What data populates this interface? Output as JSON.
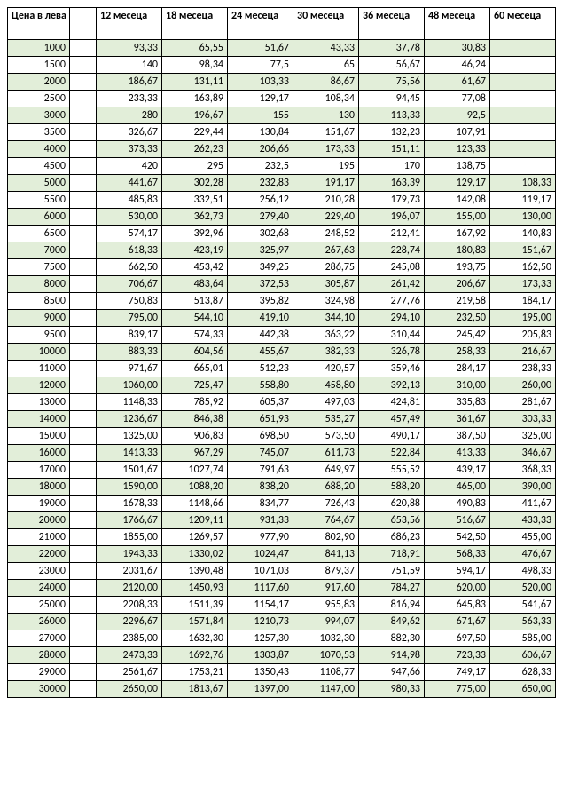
{
  "table": {
    "headers": {
      "price": "Цена в лева",
      "spacer": "",
      "months": [
        "12 месеца",
        "18 месеца",
        "24 месеца",
        "30 месеца",
        "36 месеца",
        "48 месеца",
        "60 месеца"
      ]
    },
    "rows": [
      {
        "price": "1000",
        "values": [
          "93,33",
          "65,55",
          "51,67",
          "43,33",
          "37,78",
          "30,83",
          ""
        ]
      },
      {
        "price": "1500",
        "values": [
          "140",
          "98,34",
          "77,5",
          "65",
          "56,67",
          "46,24",
          ""
        ]
      },
      {
        "price": "2000",
        "values": [
          "186,67",
          "131,11",
          "103,33",
          "86,67",
          "75,56",
          "61,67",
          ""
        ]
      },
      {
        "price": "2500",
        "values": [
          "233,33",
          "163,89",
          "129,17",
          "108,34",
          "94,45",
          "77,08",
          ""
        ]
      },
      {
        "price": "3000",
        "values": [
          "280",
          "196,67",
          "155",
          "130",
          "113,33",
          "92,5",
          ""
        ]
      },
      {
        "price": "3500",
        "values": [
          "326,67",
          "229,44",
          "130,84",
          "151,67",
          "132,23",
          "107,91",
          ""
        ]
      },
      {
        "price": "4000",
        "values": [
          "373,33",
          "262,23",
          "206,66",
          "173,33",
          "151,11",
          "123,33",
          ""
        ]
      },
      {
        "price": "4500",
        "values": [
          "420",
          "295",
          "232,5",
          "195",
          "170",
          "138,75",
          ""
        ]
      },
      {
        "price": "5000",
        "values": [
          "441,67",
          "302,28",
          "232,83",
          "191,17",
          "163,39",
          "129,17",
          "108,33"
        ]
      },
      {
        "price": "5500",
        "values": [
          "485,83",
          "332,51",
          "256,12",
          "210,28",
          "179,73",
          "142,08",
          "119,17"
        ]
      },
      {
        "price": "6000",
        "values": [
          "530,00",
          "362,73",
          "279,40",
          "229,40",
          "196,07",
          "155,00",
          "130,00"
        ]
      },
      {
        "price": "6500",
        "values": [
          "574,17",
          "392,96",
          "302,68",
          "248,52",
          "212,41",
          "167,92",
          "140,83"
        ]
      },
      {
        "price": "7000",
        "values": [
          "618,33",
          "423,19",
          "325,97",
          "267,63",
          "228,74",
          "180,83",
          "151,67"
        ]
      },
      {
        "price": "7500",
        "values": [
          "662,50",
          "453,42",
          "349,25",
          "286,75",
          "245,08",
          "193,75",
          "162,50"
        ]
      },
      {
        "price": "8000",
        "values": [
          "706,67",
          "483,64",
          "372,53",
          "305,87",
          "261,42",
          "206,67",
          "173,33"
        ]
      },
      {
        "price": "8500",
        "values": [
          "750,83",
          "513,87",
          "395,82",
          "324,98",
          "277,76",
          "219,58",
          "184,17"
        ]
      },
      {
        "price": "9000",
        "values": [
          "795,00",
          "544,10",
          "419,10",
          "344,10",
          "294,10",
          "232,50",
          "195,00"
        ]
      },
      {
        "price": "9500",
        "values": [
          "839,17",
          "574,33",
          "442,38",
          "363,22",
          "310,44",
          "245,42",
          "205,83"
        ]
      },
      {
        "price": "10000",
        "values": [
          "883,33",
          "604,56",
          "455,67",
          "382,33",
          "326,78",
          "258,33",
          "216,67"
        ]
      },
      {
        "price": "11000",
        "values": [
          "971,67",
          "665,01",
          "512,23",
          "420,57",
          "359,46",
          "284,17",
          "238,33"
        ]
      },
      {
        "price": "12000",
        "values": [
          "1060,00",
          "725,47",
          "558,80",
          "458,80",
          "392,13",
          "310,00",
          "260,00"
        ]
      },
      {
        "price": "13000",
        "values": [
          "1148,33",
          "785,92",
          "605,37",
          "497,03",
          "424,81",
          "335,83",
          "281,67"
        ]
      },
      {
        "price": "14000",
        "values": [
          "1236,67",
          "846,38",
          "651,93",
          "535,27",
          "457,49",
          "361,67",
          "303,33"
        ]
      },
      {
        "price": "15000",
        "values": [
          "1325,00",
          "906,83",
          "698,50",
          "573,50",
          "490,17",
          "387,50",
          "325,00"
        ]
      },
      {
        "price": "16000",
        "values": [
          "1413,33",
          "967,29",
          "745,07",
          "611,73",
          "522,84",
          "413,33",
          "346,67"
        ]
      },
      {
        "price": "17000",
        "values": [
          "1501,67",
          "1027,74",
          "791,63",
          "649,97",
          "555,52",
          "439,17",
          "368,33"
        ]
      },
      {
        "price": "18000",
        "values": [
          "1590,00",
          "1088,20",
          "838,20",
          "688,20",
          "588,20",
          "465,00",
          "390,00"
        ]
      },
      {
        "price": "19000",
        "values": [
          "1678,33",
          "1148,66",
          "834,77",
          "726,43",
          "620,88",
          "490,83",
          "411,67"
        ]
      },
      {
        "price": "20000",
        "values": [
          "1766,67",
          "1209,11",
          "931,33",
          "764,67",
          "653,56",
          "516,67",
          "433,33"
        ]
      },
      {
        "price": "21000",
        "values": [
          "1855,00",
          "1269,57",
          "977,90",
          "802,90",
          "686,23",
          "542,50",
          "455,00"
        ]
      },
      {
        "price": "22000",
        "values": [
          "1943,33",
          "1330,02",
          "1024,47",
          "841,13",
          "718,91",
          "568,33",
          "476,67"
        ]
      },
      {
        "price": "23000",
        "values": [
          "2031,67",
          "1390,48",
          "1071,03",
          "879,37",
          "751,59",
          "594,17",
          "498,33"
        ]
      },
      {
        "price": "24000",
        "values": [
          "2120,00",
          "1450,93",
          "1117,60",
          "917,60",
          "784,27",
          "620,00",
          "520,00"
        ]
      },
      {
        "price": "25000",
        "values": [
          "2208,33",
          "1511,39",
          "1154,17",
          "955,83",
          "816,94",
          "645,83",
          "541,67"
        ]
      },
      {
        "price": "26000",
        "values": [
          "2296,67",
          "1571,84",
          "1210,73",
          "994,07",
          "849,62",
          "671,67",
          "563,33"
        ]
      },
      {
        "price": "27000",
        "values": [
          "2385,00",
          "1632,30",
          "1257,30",
          "1032,30",
          "882,30",
          "697,50",
          "585,00"
        ]
      },
      {
        "price": "28000",
        "values": [
          "2473,33",
          "1692,76",
          "1303,87",
          "1070,53",
          "914,98",
          "723,33",
          "606,67"
        ]
      },
      {
        "price": "29000",
        "values": [
          "2561,67",
          "1753,21",
          "1350,43",
          "1108,77",
          "947,66",
          "749,17",
          "628,33"
        ]
      },
      {
        "price": "30000",
        "values": [
          "2650,00",
          "1813,67",
          "1397,00",
          "1147,00",
          "980,33",
          "775,00",
          "650,00"
        ]
      }
    ],
    "style": {
      "even_row_bg": "#e2eed9",
      "odd_row_bg": "#ffffff",
      "border_color": "#000000",
      "font_family": "Calibri",
      "header_fontsize": 12,
      "cell_fontsize": 12,
      "header_fontweight": "bold"
    }
  }
}
